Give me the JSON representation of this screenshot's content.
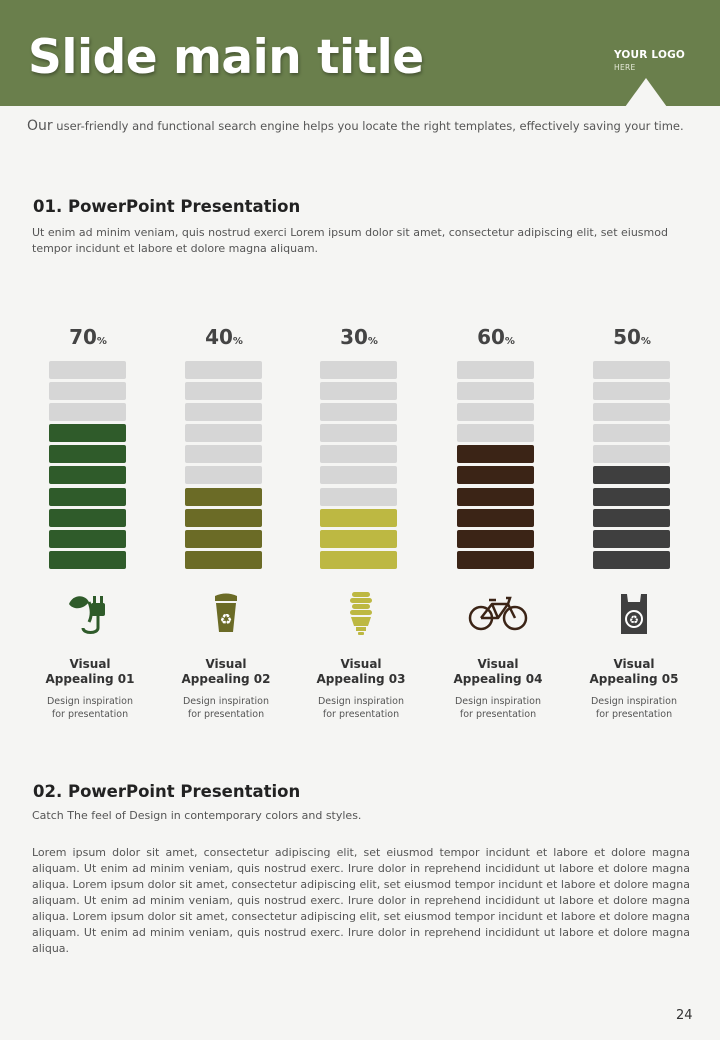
{
  "header": {
    "title": "Slide main title",
    "logo_main": "YOUR LOGO",
    "logo_sub": "HERE",
    "bg_color": "#6a7f4c"
  },
  "intro": {
    "first_word": "Our",
    "rest": " user-friendly and functional search engine helps you locate the right templates, effectively saving your time."
  },
  "section1": {
    "heading": "01. PowerPoint Presentation",
    "body": "Ut enim ad minim veniam, quis nostrud exerci  Lorem ipsum dolor sit amet, consectetur adipiscing elit, set eiusmod tempor incidunt et labore et dolore magna aliquam."
  },
  "chart_data": {
    "type": "bar",
    "categories": [
      "Visual Appealing 01",
      "Visual Appealing 02",
      "Visual Appealing 03",
      "Visual Appealing 04",
      "Visual Appealing 05"
    ],
    "values": [
      70,
      40,
      30,
      60,
      50
    ],
    "unit": "%",
    "segments_total": 10,
    "colors": [
      "#2f5b2a",
      "#6b6b26",
      "#bdb842",
      "#3b2416",
      "#3f3f3f"
    ],
    "empty_color": "#d6d6d6"
  },
  "columns": [
    {
      "pct": "70",
      "unit": "%",
      "label_line1": "Visual",
      "label_line2": "Appealing 01",
      "sub_line1": "Design inspiration",
      "sub_line2": "for presentation",
      "icon": "plug-leaf-icon",
      "color": "#2f5b2a"
    },
    {
      "pct": "40",
      "unit": "%",
      "label_line1": "Visual",
      "label_line2": "Appealing 02",
      "sub_line1": "Design inspiration",
      "sub_line2": "for presentation",
      "icon": "recycle-bin-icon",
      "color": "#6b6b26"
    },
    {
      "pct": "30",
      "unit": "%",
      "label_line1": "Visual",
      "label_line2": "Appealing 03",
      "sub_line1": "Design inspiration",
      "sub_line2": "for presentation",
      "icon": "energy-bulb-icon",
      "color": "#bdb842"
    },
    {
      "pct": "60",
      "unit": "%",
      "label_line1": "Visual",
      "label_line2": "Appealing 04",
      "sub_line1": "Design inspiration",
      "sub_line2": "for presentation",
      "icon": "bicycle-icon",
      "color": "#3b2416"
    },
    {
      "pct": "50",
      "unit": "%",
      "label_line1": "Visual",
      "label_line2": "Appealing 05",
      "sub_line1": "Design inspiration",
      "sub_line2": "for presentation",
      "icon": "recycle-bag-icon",
      "color": "#3f3f3f"
    }
  ],
  "section2": {
    "heading": "02. PowerPoint Presentation",
    "subtitle": "Catch The feel of Design in contemporary colors and styles.",
    "body": "Lorem ipsum dolor sit amet, consectetur adipiscing elit, set eiusmod tempor incidunt et labore et dolore magna aliquam. Ut enim ad minim veniam, quis nostrud exerc. Irure dolor in reprehend incididunt ut labore et dolore magna aliqua. Lorem ipsum dolor sit amet, consectetur adipiscing elit, set eiusmod tempor incidunt et labore et dolore magna aliquam. Ut enim ad minim veniam, quis nostrud exerc. Irure dolor in reprehend incididunt ut labore et dolore magna aliqua. Lorem ipsum dolor sit amet, consectetur adipiscing elit, set eiusmod tempor incidunt et labore et dolore magna aliquam. Ut enim ad minim veniam, quis nostrud exerc. Irure dolor in reprehend incididunt ut labore et dolore magna aliqua."
  },
  "page_number": "24"
}
